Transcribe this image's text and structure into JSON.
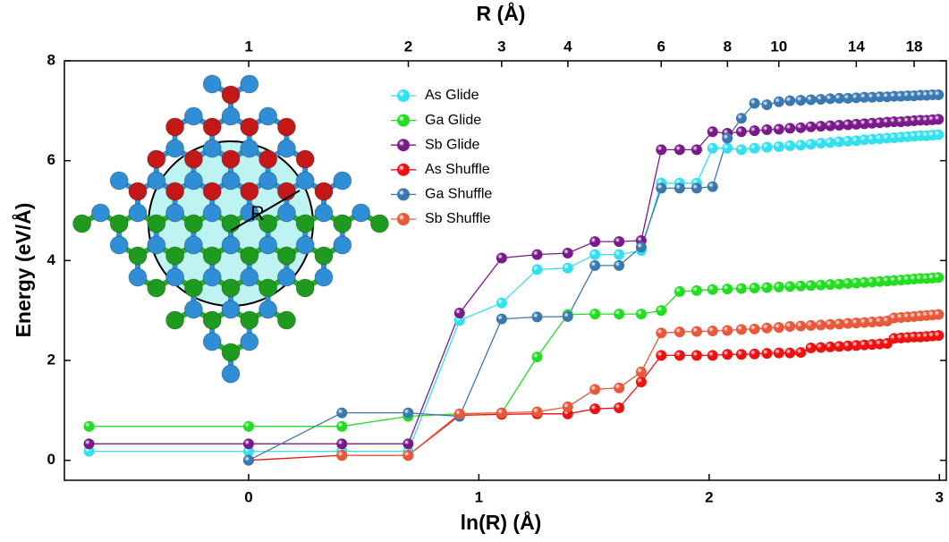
{
  "chart_data": {
    "type": "line",
    "title_top_axis": "R (Å)",
    "x_label": "ln(R) (Å)",
    "y_label": "Energy (eV/Å)",
    "annotation": "R",
    "x": [
      -0.693,
      0,
      0.405,
      0.693,
      0.916,
      1.099,
      1.253,
      1.386,
      1.504,
      1.609,
      1.705,
      1.792,
      1.872,
      1.946,
      2.015,
      2.079,
      2.14,
      2.197,
      2.251,
      2.303,
      2.351,
      2.398,
      2.442,
      2.485,
      2.526,
      2.565,
      2.603,
      2.639,
      2.674,
      2.708,
      2.741,
      2.773,
      2.803,
      2.833,
      2.862,
      2.89,
      2.917,
      2.944,
      2.97,
      2.996
    ],
    "series": [
      {
        "name": "As Glide",
        "color": "#33e0f0",
        "values": [
          0.18,
          0.18,
          0.18,
          0.18,
          2.8,
          3.15,
          3.82,
          3.85,
          4.12,
          4.12,
          4.2,
          5.55,
          5.55,
          5.55,
          6.25,
          6.25,
          6.22,
          6.25,
          6.27,
          6.28,
          6.3,
          6.31,
          6.33,
          6.35,
          6.36,
          6.38,
          6.39,
          6.4,
          6.42,
          6.43,
          6.44,
          6.45,
          6.46,
          6.47,
          6.48,
          6.49,
          6.5,
          6.5,
          6.51,
          6.52
        ]
      },
      {
        "name": "Ga Glide",
        "color": "#22dd22",
        "values": [
          0.68,
          0.68,
          0.68,
          0.88,
          0.93,
          0.95,
          2.07,
          2.92,
          2.93,
          2.93,
          2.93,
          3.0,
          3.38,
          3.4,
          3.42,
          3.43,
          3.44,
          3.45,
          3.46,
          3.47,
          3.48,
          3.49,
          3.5,
          3.51,
          3.52,
          3.53,
          3.54,
          3.55,
          3.56,
          3.57,
          3.58,
          3.59,
          3.6,
          3.61,
          3.62,
          3.63,
          3.64,
          3.64,
          3.65,
          3.66
        ]
      },
      {
        "name": "Sb Glide",
        "color": "#7a1a8a",
        "values": [
          0.33,
          0.33,
          0.33,
          0.33,
          2.95,
          4.05,
          4.12,
          4.15,
          4.38,
          4.38,
          4.4,
          6.22,
          6.22,
          6.22,
          6.58,
          6.55,
          6.58,
          6.6,
          6.62,
          6.63,
          6.65,
          6.66,
          6.68,
          6.69,
          6.7,
          6.71,
          6.72,
          6.73,
          6.74,
          6.75,
          6.76,
          6.77,
          6.78,
          6.78,
          6.79,
          6.8,
          6.81,
          6.81,
          6.82,
          6.83
        ]
      },
      {
        "name": "As Shuffle",
        "color": "#ee1111",
        "values": [
          null,
          0.0,
          0.1,
          0.1,
          0.9,
          0.92,
          0.93,
          0.93,
          1.03,
          1.05,
          1.57,
          2.1,
          2.1,
          2.1,
          2.1,
          2.12,
          2.12,
          2.13,
          2.14,
          2.15,
          2.15,
          2.16,
          2.25,
          2.26,
          2.27,
          2.28,
          2.29,
          2.3,
          2.31,
          2.32,
          2.33,
          2.34,
          2.44,
          2.45,
          2.46,
          2.47,
          2.47,
          2.48,
          2.49,
          2.5
        ]
      },
      {
        "name": "Ga Shuffle",
        "color": "#3a78b0",
        "values": [
          null,
          0.0,
          0.95,
          0.95,
          0.88,
          2.83,
          2.87,
          2.88,
          3.9,
          3.9,
          4.27,
          5.45,
          5.45,
          5.45,
          5.48,
          6.45,
          6.85,
          7.15,
          7.12,
          7.18,
          7.2,
          7.21,
          7.22,
          7.23,
          7.24,
          7.25,
          7.25,
          7.26,
          7.27,
          7.27,
          7.28,
          7.28,
          7.29,
          7.29,
          7.3,
          7.3,
          7.31,
          7.31,
          7.32,
          7.32
        ]
      },
      {
        "name": "Sb Shuffle",
        "color": "#e8583a",
        "values": [
          null,
          null,
          0.1,
          0.1,
          0.93,
          0.95,
          0.97,
          1.07,
          1.42,
          1.45,
          1.77,
          2.55,
          2.57,
          2.58,
          2.59,
          2.6,
          2.62,
          2.63,
          2.65,
          2.66,
          2.68,
          2.69,
          2.7,
          2.71,
          2.72,
          2.73,
          2.74,
          2.75,
          2.76,
          2.77,
          2.78,
          2.79,
          2.85,
          2.86,
          2.87,
          2.88,
          2.89,
          2.9,
          2.91,
          2.92
        ]
      }
    ],
    "xlim": [
      -0.8,
      3.03
    ],
    "xticks": [
      0,
      1,
      2,
      3
    ],
    "ylim": [
      -0.4,
      8
    ],
    "yticks": [
      0,
      2,
      4,
      6,
      8
    ],
    "x2lim": [
      0.449,
      20.7
    ],
    "x2scale": "log",
    "x2ticks": [
      1,
      2,
      3,
      4,
      6,
      8,
      10,
      14,
      18
    ],
    "legend": "top-center"
  }
}
